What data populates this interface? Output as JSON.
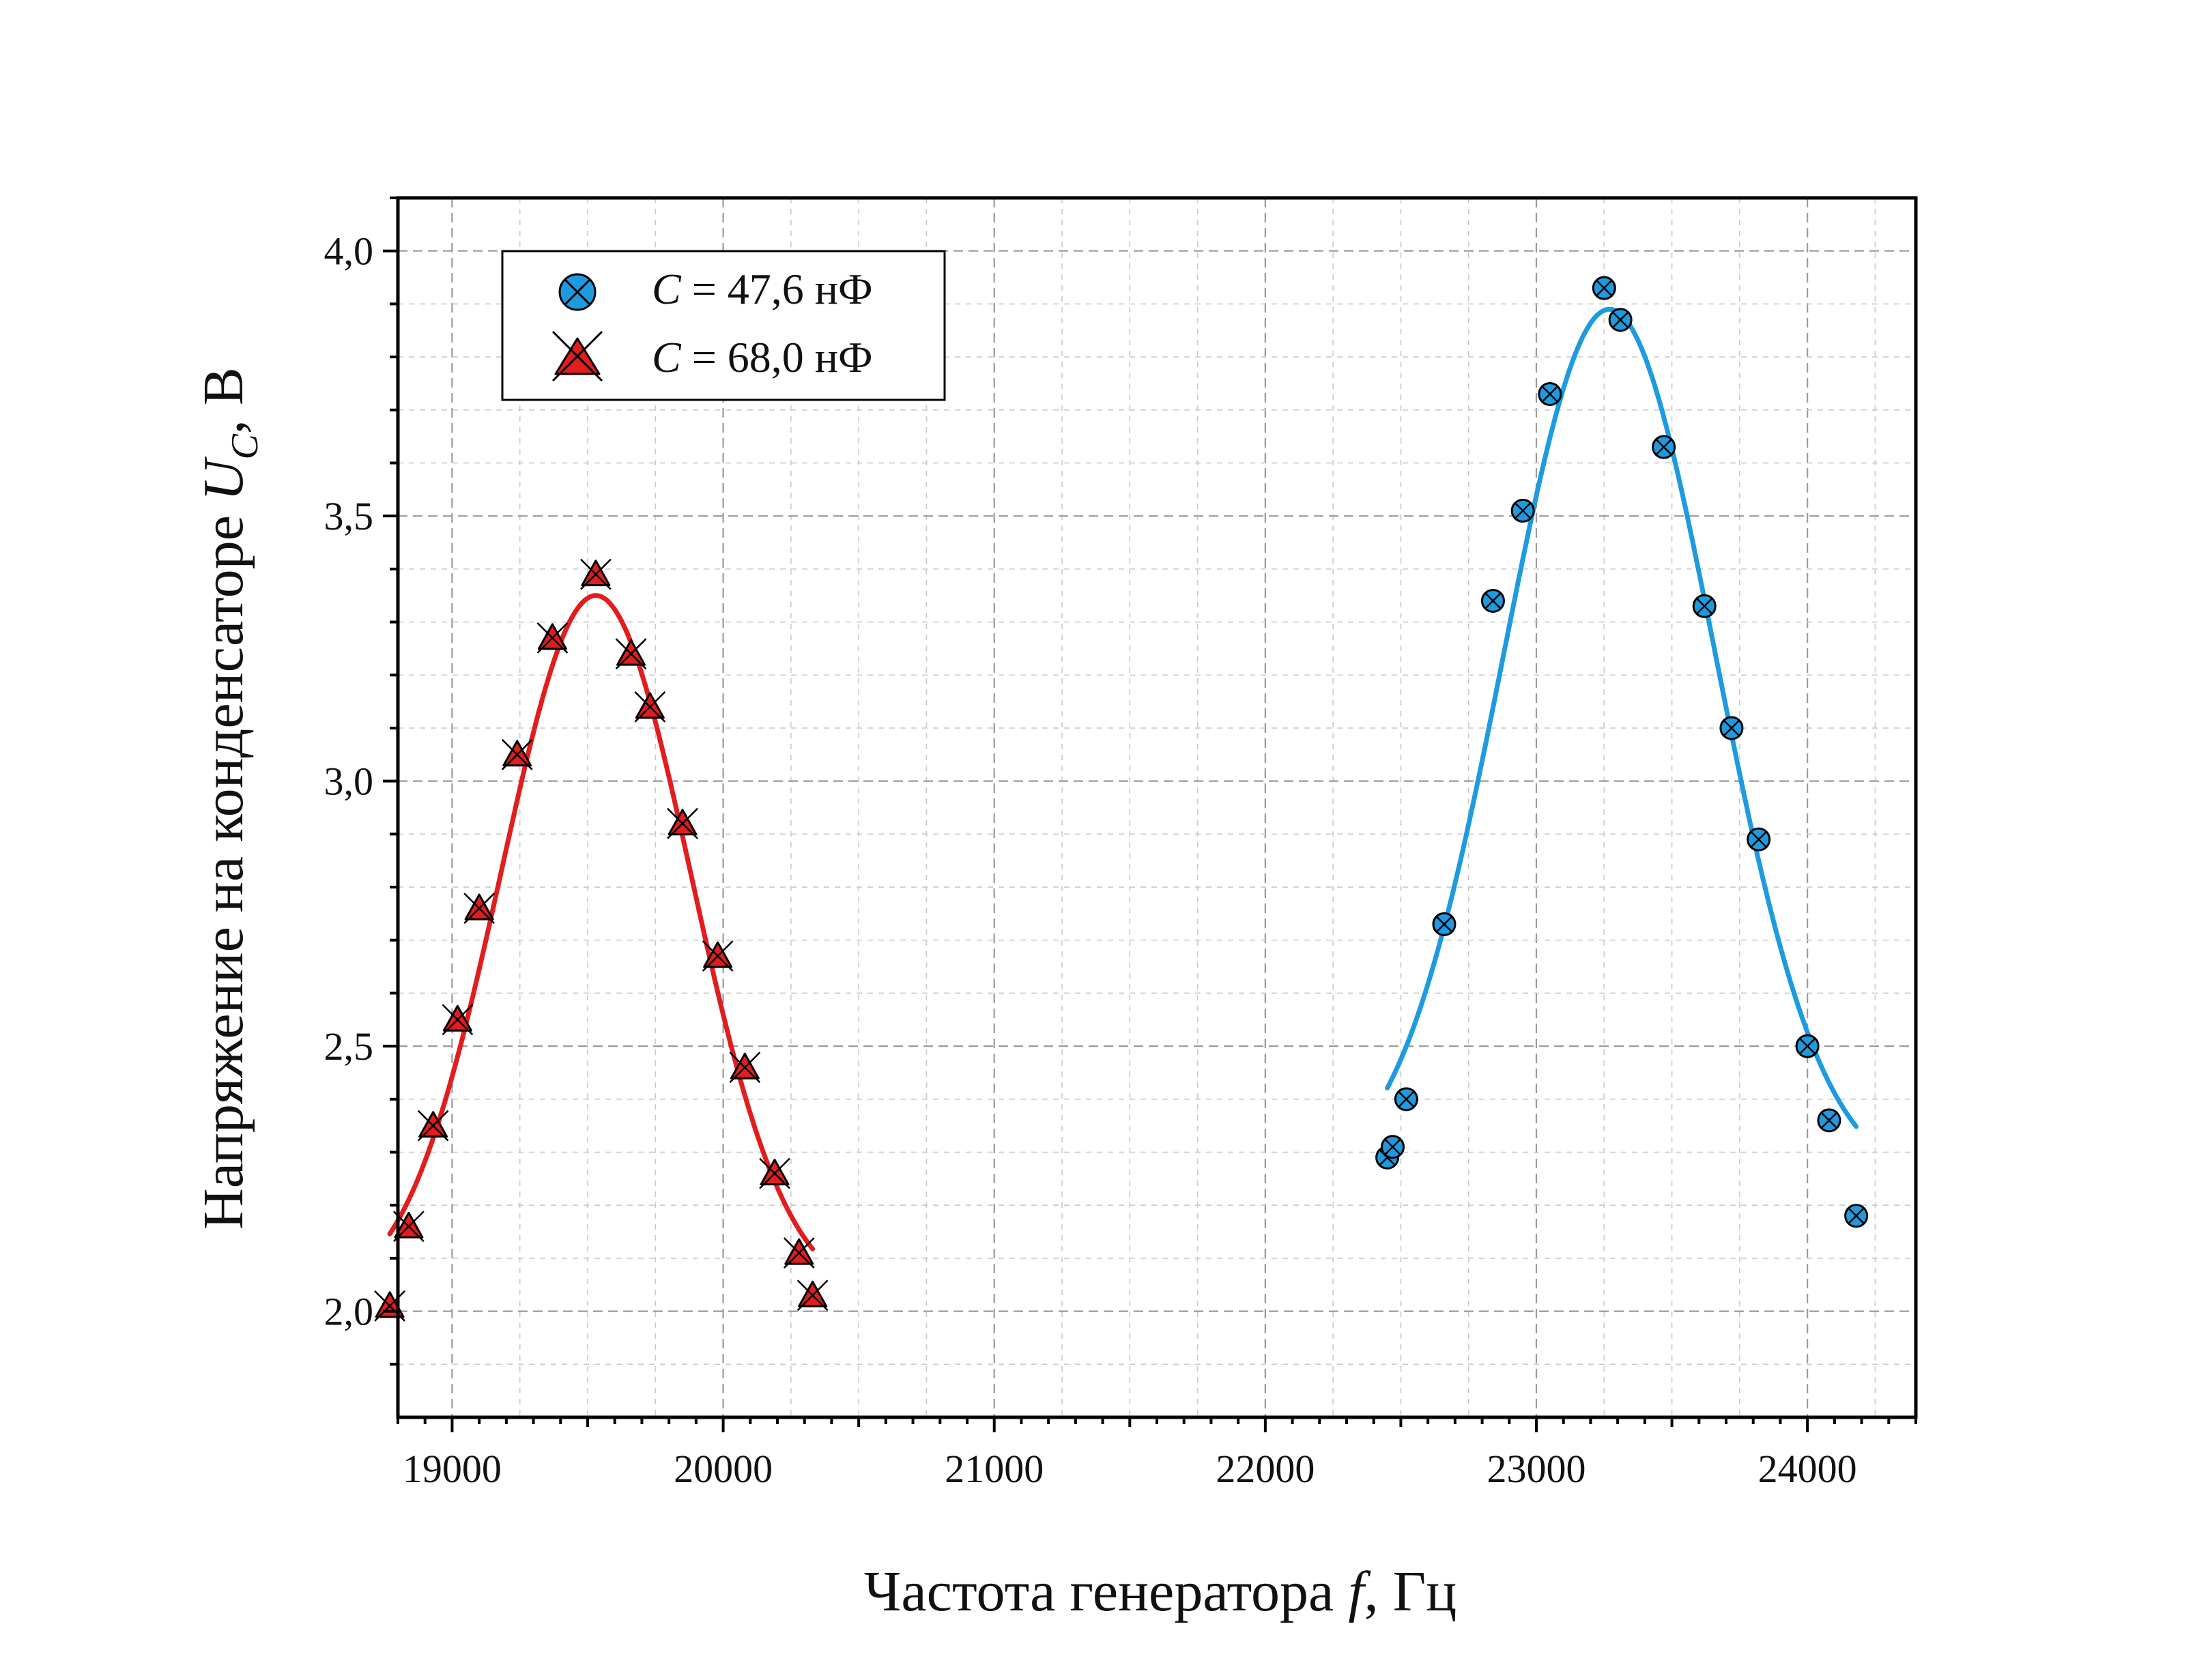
{
  "chart_data": {
    "type": "scatter",
    "xlabel": "Частота генератора f, Гц",
    "ylabel": "Напряжение на конденсаторе U_C, В",
    "xlabel_parts": [
      "Частота генератора ",
      "f",
      ", Гц"
    ],
    "ylabel_parts": [
      "Напряжение на конденсаторе ",
      "U",
      "C",
      ", В"
    ],
    "xlim": [
      18800,
      24400
    ],
    "ylim": [
      1.8,
      4.1
    ],
    "x_ticks": [
      19000,
      20000,
      21000,
      22000,
      23000,
      24000
    ],
    "x_tick_labels": [
      "19000",
      "20000",
      "21000",
      "22000",
      "23000",
      "24000"
    ],
    "y_ticks": [
      2.0,
      2.5,
      3.0,
      3.5,
      4.0
    ],
    "y_tick_labels": [
      "2,0",
      "2,5",
      "3,0",
      "3,5",
      "4,0"
    ],
    "grid": true,
    "legend_position": "top-left",
    "series": [
      {
        "name": "C = 47,6 нФ",
        "label_parts": [
          "C",
          " = 47,6 нФ"
        ],
        "marker": "circle",
        "color": "#1e9be0",
        "x": [
          22450,
          22470,
          22520,
          22660,
          22840,
          22950,
          23050,
          23250,
          23310,
          23470,
          23620,
          23720,
          23820,
          24000,
          24080,
          24180
        ],
        "y": [
          2.29,
          2.31,
          2.4,
          2.73,
          3.34,
          3.51,
          3.73,
          3.93,
          3.87,
          3.63,
          3.33,
          3.1,
          2.89,
          2.5,
          2.36,
          2.18
        ],
        "fit": {
          "amplitude": 1.65,
          "center": 23270,
          "sigma": 390,
          "offset": 2.24
        }
      },
      {
        "name": "C = 68,0 нФ",
        "label_parts": [
          "C",
          " = 68,0 нФ"
        ],
        "marker": "triangle",
        "color": "#e21d1d",
        "x": [
          18770,
          18840,
          18930,
          19020,
          19100,
          19240,
          19370,
          19530,
          19660,
          19730,
          19850,
          19980,
          20080,
          20190,
          20280,
          20330
        ],
        "y": [
          2.01,
          2.16,
          2.35,
          2.55,
          2.76,
          3.05,
          3.27,
          3.39,
          3.24,
          3.14,
          2.92,
          2.67,
          2.46,
          2.26,
          2.11,
          2.03
        ],
        "fit": {
          "amplitude": 1.33,
          "center": 19530,
          "sigma": 350,
          "offset": 2.02
        }
      }
    ]
  }
}
